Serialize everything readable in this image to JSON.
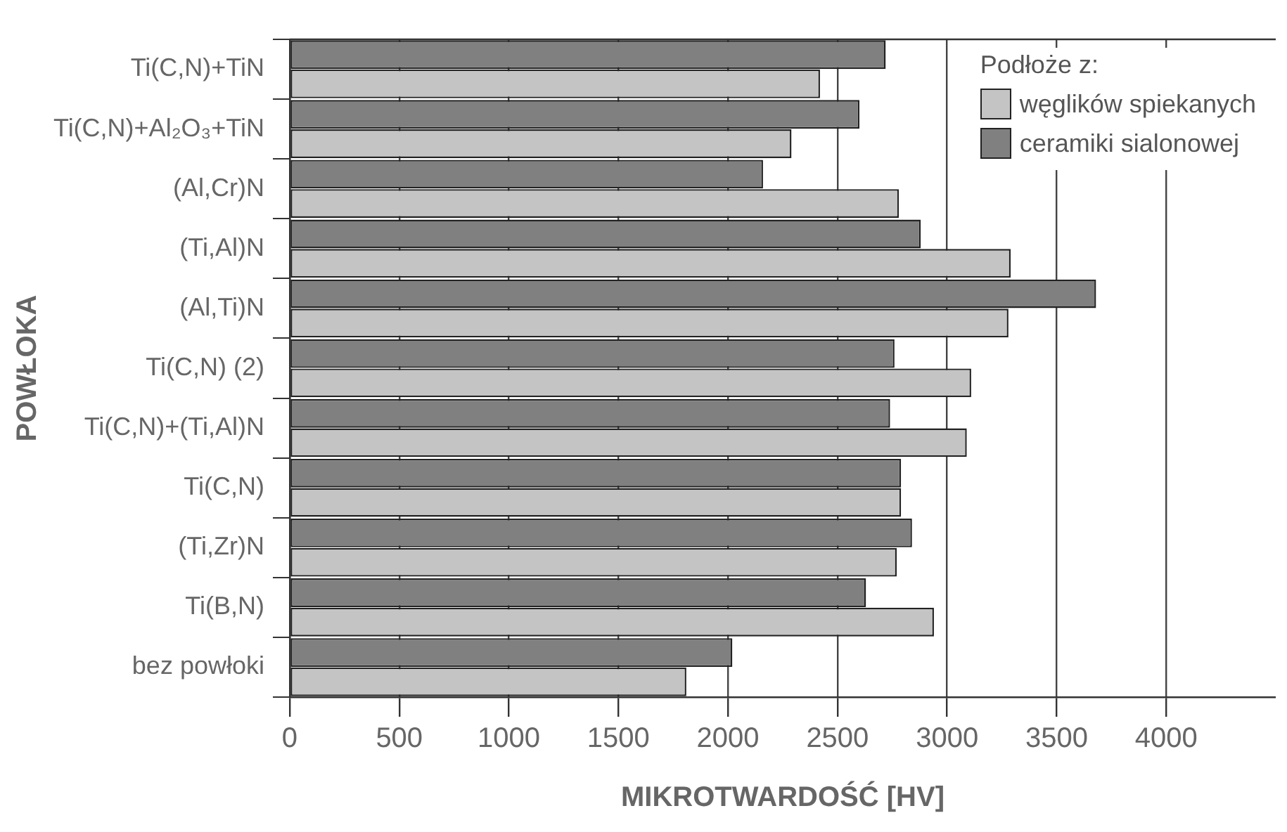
{
  "chart_data": {
    "type": "bar",
    "orientation": "horizontal",
    "xlabel": "MIKROTWARDOŚĆ [HV]",
    "ylabel": "POWŁOKA",
    "legend_title": "Podłoże z:",
    "legend": "top right",
    "grid": "x",
    "categories": [
      "Ti(C,N)+TiN",
      "Ti(C,N)+Al₂O₃+TiN",
      "(Al,Cr)N",
      "(Ti,Al)N",
      "(Al,Ti)N",
      "Ti(C,N) (2)",
      "Ti(C,N)+(Ti,Al)N",
      "Ti(C,N)",
      "(Ti,Zr)N",
      "Ti(B,N)",
      "bez powłoki"
    ],
    "series": [
      {
        "name": "węglików spiekanych",
        "color": "#c4c4c4",
        "values": [
          2420,
          2290,
          2780,
          3290,
          3280,
          3110,
          3090,
          2790,
          2770,
          2940,
          1810
        ]
      },
      {
        "name": "ceramiki sialonowej",
        "color": "#808080",
        "values": [
          2720,
          2600,
          2160,
          2880,
          3680,
          2760,
          2740,
          2790,
          2840,
          2630,
          2020
        ]
      }
    ],
    "xlim": [
      0,
      4500
    ],
    "xticks": [
      0,
      500,
      1000,
      1500,
      2000,
      2500,
      3000,
      3500,
      4000
    ]
  }
}
